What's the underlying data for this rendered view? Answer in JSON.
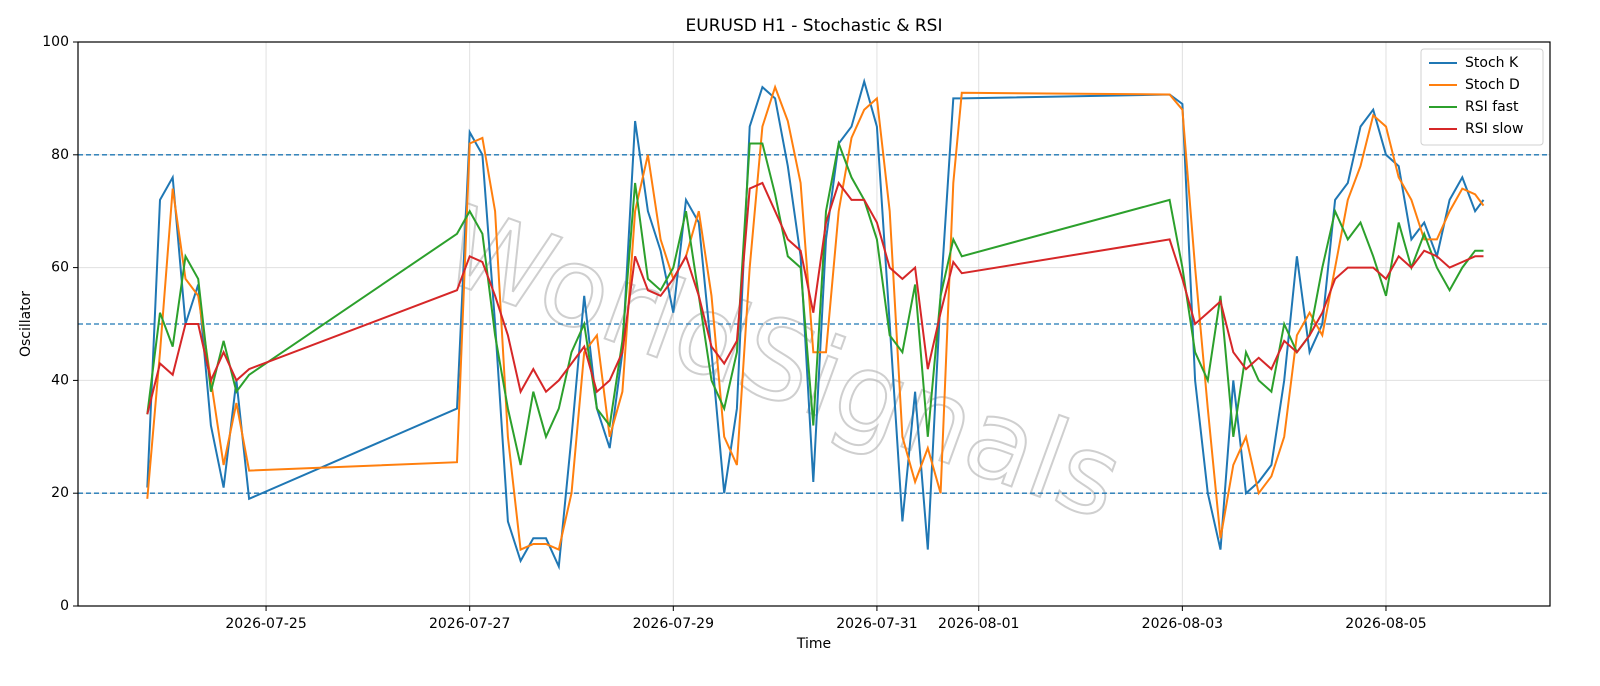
{
  "chart_data": {
    "type": "line",
    "title": "EURUSD H1 - Stochastic & RSI",
    "x_label": "Time",
    "y_label": "Oscillator",
    "watermark": "WorldSignals",
    "x": [
      "2026-07-23 20:00",
      "2026-07-23 23:00",
      "2026-07-24 02:00",
      "2026-07-24 05:00",
      "2026-07-24 08:00",
      "2026-07-24 11:00",
      "2026-07-24 14:00",
      "2026-07-24 17:00",
      "2026-07-24 20:00",
      "2026-07-26 21:00",
      "2026-07-27 00:00",
      "2026-07-27 03:00",
      "2026-07-27 06:00",
      "2026-07-27 09:00",
      "2026-07-27 12:00",
      "2026-07-27 15:00",
      "2026-07-27 18:00",
      "2026-07-27 21:00",
      "2026-07-28 00:00",
      "2026-07-28 03:00",
      "2026-07-28 06:00",
      "2026-07-28 09:00",
      "2026-07-28 12:00",
      "2026-07-28 15:00",
      "2026-07-28 18:00",
      "2026-07-28 21:00",
      "2026-07-29 00:00",
      "2026-07-29 03:00",
      "2026-07-29 06:00",
      "2026-07-29 09:00",
      "2026-07-29 12:00",
      "2026-07-29 15:00",
      "2026-07-29 18:00",
      "2026-07-29 21:00",
      "2026-07-30 00:00",
      "2026-07-30 03:00",
      "2026-07-30 06:00",
      "2026-07-30 09:00",
      "2026-07-30 12:00",
      "2026-07-30 15:00",
      "2026-07-30 18:00",
      "2026-07-30 21:00",
      "2026-07-31 00:00",
      "2026-07-31 03:00",
      "2026-07-31 06:00",
      "2026-07-31 09:00",
      "2026-07-31 12:00",
      "2026-07-31 15:00",
      "2026-07-31 18:00",
      "2026-07-31 20:00",
      "2026-08-02 21:00",
      "2026-08-03 00:00",
      "2026-08-03 03:00",
      "2026-08-03 06:00",
      "2026-08-03 09:00",
      "2026-08-03 12:00",
      "2026-08-03 15:00",
      "2026-08-03 18:00",
      "2026-08-03 21:00",
      "2026-08-04 00:00",
      "2026-08-04 03:00",
      "2026-08-04 06:00",
      "2026-08-04 09:00",
      "2026-08-04 12:00",
      "2026-08-04 15:00",
      "2026-08-04 18:00",
      "2026-08-04 21:00",
      "2026-08-05 00:00",
      "2026-08-05 03:00",
      "2026-08-05 06:00",
      "2026-08-05 09:00",
      "2026-08-05 12:00",
      "2026-08-05 15:00",
      "2026-08-05 18:00",
      "2026-08-05 21:00",
      "2026-08-05 23:00"
    ],
    "series": [
      {
        "name": "Stoch K",
        "color": "#1f77b4",
        "values": [
          21,
          72,
          76,
          50,
          57,
          32,
          21,
          40,
          19,
          35,
          84,
          80,
          50,
          15,
          8,
          12,
          12,
          7,
          30,
          55,
          35,
          28,
          45,
          86,
          70,
          63,
          52,
          72,
          68,
          45,
          20,
          35,
          85,
          92,
          90,
          78,
          62,
          22,
          65,
          82,
          85,
          93,
          85,
          50,
          15,
          38,
          10,
          55,
          90,
          90,
          90.7,
          89,
          40,
          20,
          10,
          40,
          20,
          22,
          25,
          40,
          62,
          45,
          50,
          72,
          75,
          85,
          88,
          80,
          78,
          65,
          68,
          62,
          72,
          76,
          70,
          72
        ]
      },
      {
        "name": "Stoch D",
        "color": "#ff7f0e",
        "values": [
          19,
          45,
          74,
          58,
          55,
          40,
          25,
          36,
          24,
          25.5,
          82,
          83,
          70,
          30,
          10,
          11,
          11,
          10,
          20,
          45,
          48,
          30,
          38,
          70,
          80,
          65,
          58,
          62,
          70,
          55,
          30,
          25,
          60,
          85,
          92,
          86,
          75,
          45,
          45,
          70,
          83,
          88,
          90,
          70,
          30,
          22,
          28,
          20,
          75,
          91,
          90.7,
          88,
          60,
          35,
          12,
          25,
          30,
          20,
          23,
          30,
          48,
          52,
          48,
          60,
          72,
          78,
          87,
          85,
          76,
          72,
          65,
          65,
          70,
          74,
          73,
          71
        ]
      },
      {
        "name": "RSI fast",
        "color": "#2ca02c",
        "values": [
          34,
          52,
          46,
          62,
          58,
          38,
          47,
          38,
          41,
          66,
          70,
          66,
          48,
          35,
          25,
          38,
          30,
          35,
          45,
          50,
          35,
          32,
          47,
          75,
          58,
          56,
          60,
          70,
          55,
          40,
          35,
          45,
          82,
          82,
          73,
          62,
          60,
          32,
          70,
          82,
          76,
          72,
          65,
          48,
          45,
          57,
          30,
          55,
          65,
          62,
          72,
          60,
          45,
          40,
          55,
          30,
          45,
          40,
          38,
          50,
          45,
          48,
          60,
          70,
          65,
          68,
          62,
          55,
          68,
          60,
          66,
          60,
          56,
          60,
          63,
          63
        ]
      },
      {
        "name": "RSI slow",
        "color": "#d62728",
        "values": [
          34,
          43,
          41,
          50,
          50,
          40,
          45,
          40,
          42,
          56,
          62,
          61,
          55,
          48,
          38,
          42,
          38,
          40,
          43,
          46,
          38,
          40,
          45,
          62,
          56,
          55,
          58,
          62,
          55,
          46,
          43,
          47,
          74,
          75,
          70,
          65,
          63,
          52,
          68,
          75,
          72,
          72,
          68,
          60,
          58,
          60,
          42,
          52,
          61,
          59,
          65,
          58,
          50,
          52,
          54,
          45,
          42,
          44,
          42,
          47,
          45,
          48,
          52,
          58,
          60,
          60,
          60,
          58,
          62,
          60,
          63,
          62,
          60,
          61,
          62,
          62
        ]
      }
    ],
    "reference_lines": [
      20,
      50,
      80
    ],
    "reference_color": "#1f77b4",
    "xlim": [
      "2026-07-23 03:40",
      "2026-08-06 14:40"
    ],
    "xticks": [
      "2026-07-25",
      "2026-07-27",
      "2026-07-29",
      "2026-07-31",
      "2026-08-01",
      "2026-08-03",
      "2026-08-05"
    ],
    "ylim": [
      0,
      100
    ],
    "yticks": [
      0,
      20,
      40,
      60,
      80,
      100
    ],
    "grid": true,
    "legend": "upper right"
  }
}
